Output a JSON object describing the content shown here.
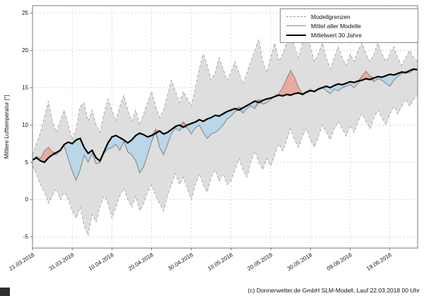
{
  "page": {
    "caption": "(c) Donnerwetter.de GmbH SLM-Modell, Lauf 22.03.2018 00 Uhr"
  },
  "legend": {
    "items": [
      {
        "label": "Modellgrenzen",
        "style": "dashed-gray"
      },
      {
        "label": "Mittel aller Modelle",
        "style": "solid-gray"
      },
      {
        "label": "Mittelwert 30 Jahre",
        "style": "solid-black"
      }
    ]
  },
  "chart_data": {
    "type": "line",
    "title": "",
    "xlabel": "",
    "ylabel": "Mittlere Lufttemperatur [°]",
    "ylim": [
      -6.5,
      26
    ],
    "yticks": [
      -5,
      0,
      5,
      10,
      15,
      20,
      25
    ],
    "grid": true,
    "legend_position": "upper right",
    "x_unit": "days since 21.03.2018",
    "xticks": [
      {
        "day": 0,
        "label": "21.03.2018"
      },
      {
        "day": 10,
        "label": "31.03.2018"
      },
      {
        "day": 20,
        "label": "10.04.2018"
      },
      {
        "day": 30,
        "label": "20.04.2018"
      },
      {
        "day": 40,
        "label": "30.04.2018"
      },
      {
        "day": 50,
        "label": "10.05.2018"
      },
      {
        "day": 60,
        "label": "20.05.2018"
      },
      {
        "day": 70,
        "label": "30.05.2018"
      },
      {
        "day": 80,
        "label": "09.06.2018"
      },
      {
        "day": 90,
        "label": "19.06.2018"
      }
    ],
    "colors": {
      "band_fill": "#dedede",
      "band_edge": "#9a9a9a",
      "blue_fill": "#b9d7e8",
      "blue_edge": "#6f9fc0",
      "red_fill": "#e9aaa0",
      "red_edge": "#c97f72",
      "mean_line": "#8c8c8c",
      "clim_line": "#000000",
      "grid": "#c9c9c9"
    },
    "series": [
      {
        "name": "Modellgrenzen (oben)",
        "values": [
          6.0,
          7.5,
          9.0,
          11.0,
          13.2,
          10.5,
          9.0,
          10.5,
          12.0,
          10.0,
          8.0,
          9.5,
          12.5,
          13.0,
          10.5,
          12.0,
          10.0,
          9.0,
          11.5,
          13.5,
          12.0,
          10.5,
          12.5,
          14.0,
          12.0,
          10.5,
          12.0,
          10.0,
          11.5,
          13.0,
          14.5,
          12.5,
          11.0,
          12.0,
          14.0,
          16.0,
          14.5,
          13.0,
          14.5,
          13.5,
          12.5,
          15.0,
          17.5,
          19.5,
          18.0,
          16.0,
          17.0,
          19.0,
          17.5,
          16.0,
          17.0,
          18.5,
          17.0,
          15.5,
          17.0,
          18.5,
          20.0,
          21.5,
          18.5,
          17.0,
          19.0,
          21.0,
          18.5,
          19.5,
          21.0,
          22.0,
          20.5,
          19.0,
          21.0,
          23.3,
          20.5,
          18.5,
          19.5,
          21.0,
          19.0,
          17.5,
          19.0,
          20.5,
          19.0,
          18.0,
          19.5,
          18.5,
          20.0,
          21.0,
          19.5,
          18.5,
          19.5,
          21.0,
          19.5,
          18.5,
          19.5,
          20.5,
          19.0,
          18.0,
          19.0,
          20.0,
          19.0,
          18.5
        ]
      },
      {
        "name": "Modellgrenzen (unten)",
        "values": [
          4.5,
          3.5,
          2.0,
          1.0,
          -0.5,
          0.5,
          1.5,
          0.0,
          1.0,
          0.0,
          -1.5,
          -2.5,
          -1.0,
          -3.5,
          -4.8,
          -2.0,
          -3.0,
          -1.0,
          0.5,
          -0.5,
          -2.5,
          -1.0,
          0.5,
          1.5,
          0.0,
          -1.0,
          0.5,
          -1.5,
          -0.5,
          1.0,
          2.0,
          0.5,
          -0.5,
          -1.5,
          0.5,
          2.0,
          3.5,
          2.0,
          3.0,
          1.5,
          0.0,
          2.0,
          3.5,
          2.0,
          1.0,
          3.0,
          4.0,
          2.5,
          3.5,
          2.0,
          2.5,
          4.0,
          5.5,
          4.0,
          3.0,
          5.0,
          6.5,
          5.0,
          4.0,
          5.5,
          4.5,
          6.0,
          7.5,
          6.5,
          8.0,
          9.5,
          8.0,
          7.0,
          8.5,
          9.5,
          8.0,
          7.0,
          8.5,
          10.0,
          9.0,
          8.0,
          9.5,
          10.5,
          9.5,
          8.5,
          10.0,
          9.0,
          10.5,
          11.5,
          10.5,
          9.5,
          11.0,
          12.0,
          11.0,
          10.0,
          11.5,
          12.5,
          11.5,
          12.5,
          13.5,
          12.5,
          13.5,
          14.0
        ]
      },
      {
        "name": "Mittel aller Modelle",
        "values": [
          5.3,
          5.8,
          5.5,
          6.5,
          7.0,
          6.4,
          6.0,
          6.6,
          7.2,
          5.5,
          3.8,
          2.6,
          4.0,
          6.0,
          5.0,
          6.2,
          4.8,
          5.0,
          6.2,
          6.8,
          7.0,
          7.4,
          6.6,
          7.8,
          6.4,
          6.0,
          5.2,
          3.6,
          4.4,
          6.0,
          7.8,
          9.4,
          7.0,
          6.0,
          7.4,
          8.8,
          9.6,
          9.2,
          10.4,
          9.6,
          8.8,
          9.6,
          10.0,
          9.0,
          8.2,
          8.8,
          9.0,
          9.4,
          10.0,
          10.8,
          11.2,
          11.8,
          12.4,
          11.6,
          12.2,
          12.6,
          12.2,
          13.4,
          12.8,
          13.0,
          13.4,
          13.9,
          14.2,
          15.0,
          16.2,
          17.3,
          16.4,
          15.0,
          14.2,
          14.5,
          14.8,
          14.4,
          14.9,
          15.1,
          14.6,
          14.2,
          14.8,
          14.6,
          15.0,
          15.2,
          15.4,
          15.0,
          15.6,
          16.6,
          17.2,
          16.6,
          15.8,
          16.2,
          16.0,
          15.6,
          15.2,
          16.0,
          16.5,
          16.9,
          17.2,
          17.0,
          17.4,
          17.5
        ]
      },
      {
        "name": "Mittelwert 30 Jahre",
        "values": [
          5.3,
          5.6,
          5.2,
          5.0,
          5.6,
          6.0,
          6.3,
          6.6,
          7.4,
          7.7,
          7.5,
          8.0,
          8.2,
          7.0,
          6.2,
          6.6,
          5.6,
          5.2,
          6.4,
          7.6,
          8.4,
          8.6,
          8.3,
          8.0,
          7.6,
          8.0,
          8.6,
          8.9,
          8.7,
          8.4,
          8.6,
          8.9,
          9.2,
          8.8,
          9.0,
          9.4,
          9.8,
          10.0,
          9.7,
          10.0,
          10.2,
          10.4,
          10.7,
          10.5,
          10.8,
          11.0,
          11.3,
          11.2,
          11.5,
          11.8,
          12.0,
          12.2,
          12.0,
          12.3,
          12.6,
          12.9,
          13.2,
          13.0,
          13.3,
          13.5,
          13.6,
          13.8,
          14.0,
          13.9,
          14.1,
          14.0,
          14.2,
          14.3,
          14.1,
          14.4,
          14.6,
          14.5,
          14.8,
          15.0,
          15.2,
          15.0,
          15.3,
          15.5,
          15.4,
          15.6,
          15.8,
          15.7,
          15.9,
          16.0,
          16.2,
          16.1,
          16.3,
          16.5,
          16.4,
          16.6,
          16.8,
          16.7,
          16.9,
          17.1,
          17.0,
          17.3,
          17.5,
          17.4
        ]
      }
    ]
  }
}
